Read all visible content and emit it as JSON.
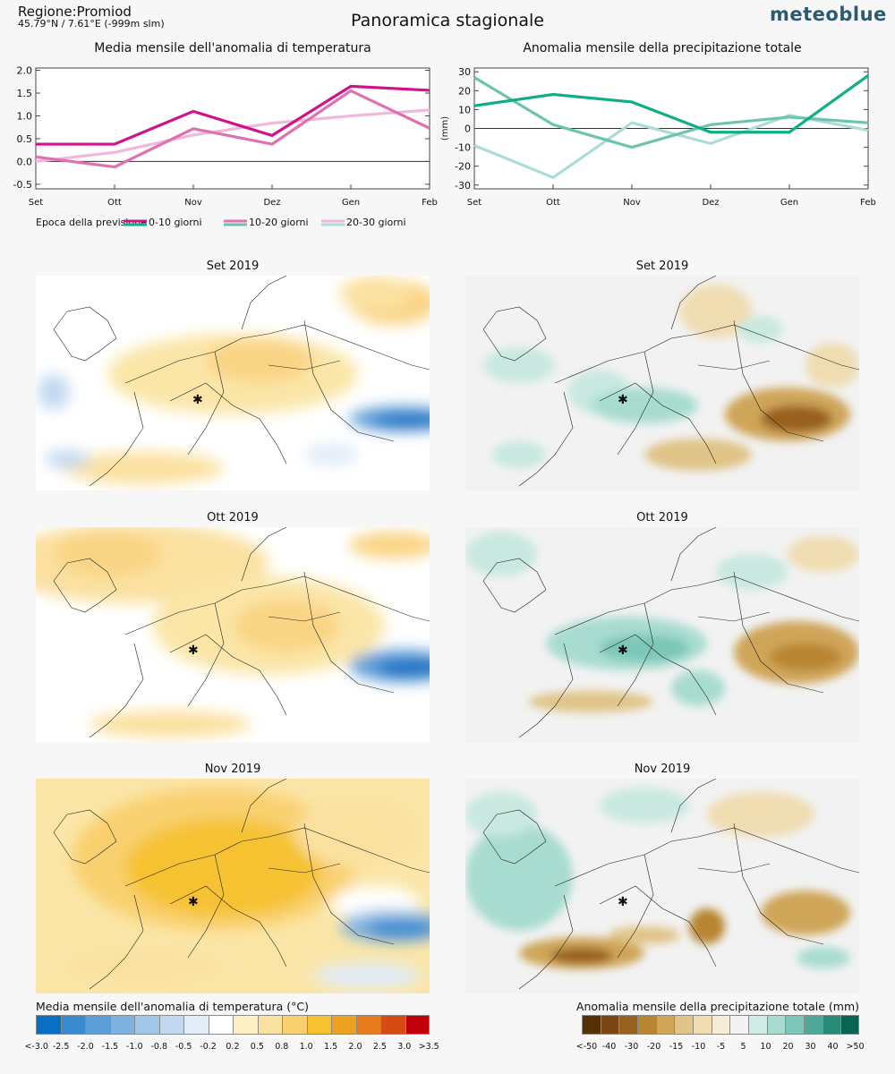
{
  "header": {
    "region": "Regione:Promiod",
    "coords": "45.79°N / 7.61°E (-999m slm)",
    "title": "Panoramica stagionale",
    "logo": "meteoblue"
  },
  "chart_data": [
    {
      "type": "line",
      "title": "Media mensile dell'anomalia di temperatura",
      "ylabel": "",
      "categories": [
        "Set",
        "Ott",
        "Nov",
        "Dez",
        "Gen",
        "Feb"
      ],
      "ylim": [
        -0.6,
        2.05
      ],
      "yticks": [
        "2.0",
        "1.5",
        "1.0",
        "0.5",
        "0.0",
        "-0.5"
      ],
      "ytick_values": [
        2.0,
        1.5,
        1.0,
        0.5,
        0.0,
        -0.5
      ],
      "series": [
        {
          "name": "0-10 giorni",
          "color": "#d0128a",
          "values": [
            0.38,
            0.38,
            1.1,
            0.57,
            1.65,
            1.56
          ]
        },
        {
          "name": "10-20 giorni",
          "color": "#e070b0",
          "values": [
            0.1,
            -0.12,
            0.72,
            0.38,
            1.55,
            0.73
          ]
        },
        {
          "name": "20-30 giorni",
          "color": "#f0b8db",
          "values": [
            0.0,
            0.2,
            0.58,
            0.84,
            1.0,
            1.13
          ]
        }
      ]
    },
    {
      "type": "line",
      "title": "Anomalia mensile della precipitazione totale",
      "ylabel": "(mm)",
      "categories": [
        "Set",
        "Ott",
        "Nov",
        "Dez",
        "Gen",
        "Feb"
      ],
      "ylim": [
        -32,
        32
      ],
      "yticks": [
        "30",
        "20",
        "10",
        "0",
        "-10",
        "-20",
        "-30"
      ],
      "ytick_values": [
        30,
        20,
        10,
        0,
        -10,
        -20,
        -30
      ],
      "series": [
        {
          "name": "0-10 giorni",
          "color": "#0fae86",
          "values": [
            12,
            18,
            14,
            -2,
            -2,
            28
          ]
        },
        {
          "name": "10-20 giorni",
          "color": "#6cc4ad",
          "values": [
            27,
            2,
            -10,
            2,
            6,
            3
          ]
        },
        {
          "name": "20-30 giorni",
          "color": "#acdcd8",
          "values": [
            -9,
            -26,
            3,
            -8,
            7,
            -1
          ]
        }
      ]
    }
  ],
  "legend": {
    "label": "Epoca della previsione",
    "items": [
      {
        "label": "0-10 giorni",
        "color_a": "#d0128a",
        "color_b": "#0fae86"
      },
      {
        "label": "10-20 giorni",
        "color_a": "#e070b0",
        "color_b": "#6cc4ad"
      },
      {
        "label": "20-30 giorni",
        "color_a": "#f0b8db",
        "color_b": "#acdcd8"
      }
    ]
  },
  "maps": {
    "temperature": [
      {
        "title": "Set 2019"
      },
      {
        "title": "Ott 2019"
      },
      {
        "title": "Nov 2019"
      }
    ],
    "precipitation": [
      {
        "title": "Set 2019"
      },
      {
        "title": "Ott 2019"
      },
      {
        "title": "Nov 2019"
      }
    ]
  },
  "colorbars": {
    "temperature": {
      "title": "Media mensile dell'anomalia di temperatura (°C)",
      "colors": [
        "#0a6fc2",
        "#3a8ad0",
        "#5e9ed8",
        "#7fb2df",
        "#a0c6e8",
        "#c2d8f0",
        "#e1ecf7",
        "#ffffff",
        "#fdf0c4",
        "#fbe1a0",
        "#f9d070",
        "#f6c230",
        "#eea020",
        "#e67a1c",
        "#d64a14",
        "#c0000a"
      ],
      "ticks": [
        "<-3.0",
        "-2.5",
        "-2.0",
        "-1.5",
        "-1.0",
        "-0.8",
        "-0.5",
        "-0.2",
        "0.2",
        "0.5",
        "0.8",
        "1.0",
        "1.5",
        "2.0",
        "2.5",
        "3.0",
        ">3.5"
      ]
    },
    "precipitation": {
      "title": "Anomalia mensile della precipitazione totale (mm)",
      "colors": [
        "#543005",
        "#7a4514",
        "#98611e",
        "#b88530",
        "#cfa558",
        "#e0c488",
        "#efdcb0",
        "#f5edd8",
        "#f3f3f3",
        "#d0ece6",
        "#a8dcd0",
        "#7cc6b8",
        "#50a998",
        "#2a8a78",
        "#0a6450"
      ],
      "ticks": [
        "<-50",
        "-40",
        "-30",
        "-20",
        "-15",
        "-10",
        "-5",
        "5",
        "10",
        "20",
        "30",
        "40",
        ">50"
      ]
    }
  }
}
